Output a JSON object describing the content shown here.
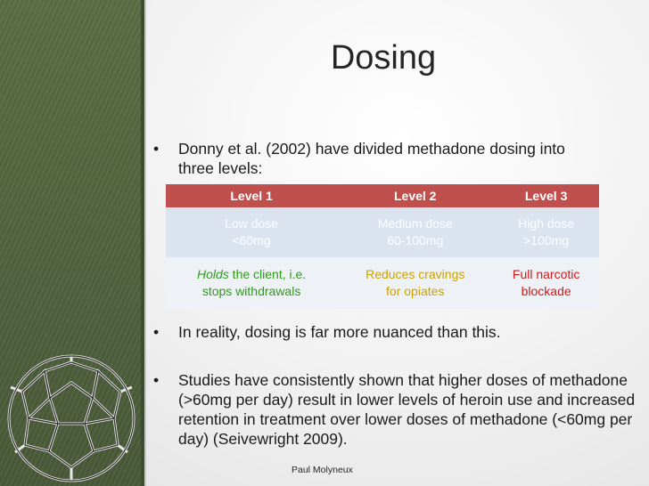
{
  "slide": {
    "title": "Dosing",
    "bullet1": "Donny et al. (2002) have divided methadone dosing into three levels:",
    "bullet2": "In reality, dosing is far more nuanced than this.",
    "bullet3": "Studies have consistently shown that higher doses of methadone (>60mg per day) result in lower levels of heroin use and increased retention in treatment over lower doses of methadone (<60mg per day) (Seivewright 2009).",
    "bullet_symbol": "•",
    "footer": "Paul Molyneux"
  },
  "table": {
    "headers": [
      "Level 1",
      "Level 2",
      "Level 3"
    ],
    "dose": [
      {
        "line1": "Low dose",
        "line2": "<60mg"
      },
      {
        "line1": "Medium dose",
        "line2": "60-100mg"
      },
      {
        "line1": "High dose",
        "line2": ">100mg"
      }
    ],
    "effect": {
      "c1_em": "Holds",
      "c1_rest": " the client, i.e.",
      "c1_line2": "stops withdrawals",
      "c2_line1": "Reduces cravings",
      "c2_line2": "for opiates",
      "c3_line1": "Full narcotic",
      "c3_line2": "blockade"
    }
  },
  "colors": {
    "header_bg": "#c0504d",
    "sidebar_green": "#56683f",
    "level1_text": "#2f9a1a",
    "level2_text": "#c9a300",
    "level3_text": "#cc1b1b"
  }
}
